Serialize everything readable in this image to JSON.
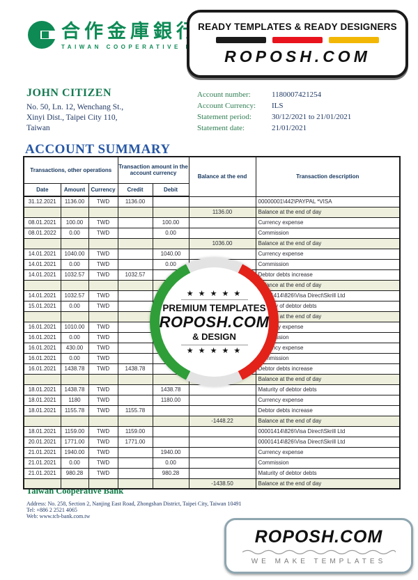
{
  "brand": {
    "logo_cn": "合作金庫銀行",
    "logo_en": "TAIWAN COOPERATIVE BANK",
    "green": "#0e8a55"
  },
  "top_badge": {
    "line1": "READY TEMPLATES & READY DESIGNERS",
    "site": "ROPOSH.COM",
    "bar_colors": [
      "#1b1b1b",
      "#e8131d",
      "#f2b705"
    ]
  },
  "customer": {
    "name": "JOHN CITIZEN",
    "address_lines": [
      "No. 50, Ln. 12, Wenchang St.,",
      "Xinyi Dist., Taipei City 110,",
      "Taiwan"
    ]
  },
  "account_info": {
    "rows": [
      {
        "label": "Account number:",
        "value": "1180007421254"
      },
      {
        "label": "Account Currency:",
        "value": "ILS"
      },
      {
        "label": "Statement period:",
        "value": "30/12/2021 to 21/01/2021"
      },
      {
        "label": "Statement date:",
        "value": "21/01/2021"
      }
    ]
  },
  "summary": {
    "title": "ACCOUNT SUMMARY",
    "header": {
      "group_transactions": "Transactions, other operations",
      "group_amount": "Transaction amount in the account currency",
      "balance": "Balance at the end",
      "description": "Transaction description",
      "cols": [
        "Date",
        "Amount",
        "Currency",
        "Credit",
        "Debit"
      ]
    },
    "rows": [
      {
        "date": "31.12.2021",
        "amount": "1136.00",
        "currency": "TWD",
        "credit": "1136.00",
        "debit": "",
        "balance": "",
        "description": "00000001\\442\\PAYPAL *VISA",
        "shaded": false
      },
      {
        "date": "",
        "amount": "",
        "currency": "",
        "credit": "",
        "debit": "",
        "balance": "1136.00",
        "description": "Balance at the end of day",
        "shaded": true
      },
      {
        "date": "08.01.2021",
        "amount": "100.00",
        "currency": "TWD",
        "credit": "",
        "debit": "100.00",
        "balance": "",
        "description": "Currency expense",
        "shaded": false
      },
      {
        "date": "08.01.2022",
        "amount": "0.00",
        "currency": "TWD",
        "credit": "",
        "debit": "0.00",
        "balance": "",
        "description": "Commission",
        "shaded": false
      },
      {
        "date": "",
        "amount": "",
        "currency": "",
        "credit": "",
        "debit": "",
        "balance": "1036.00",
        "description": "Balance at the end of day",
        "shaded": true
      },
      {
        "date": "14.01.2021",
        "amount": "1040.00",
        "currency": "TWD",
        "credit": "",
        "debit": "1040.00",
        "balance": "",
        "description": "Currency expense",
        "shaded": false
      },
      {
        "date": "14.01.2021",
        "amount": "0.00",
        "currency": "TWD",
        "credit": "",
        "debit": "0.00",
        "balance": "",
        "description": "Commission",
        "shaded": false
      },
      {
        "date": "14.01.2021",
        "amount": "1032.57",
        "currency": "TWD",
        "credit": "1032.57",
        "debit": "",
        "balance": "",
        "description": "Debtor debts increase",
        "shaded": false
      },
      {
        "date": "",
        "amount": "",
        "currency": "",
        "credit": "",
        "debit": "",
        "balance": "",
        "description": "Balance at the end of day",
        "shaded": true
      },
      {
        "date": "14.01.2021",
        "amount": "1032.57",
        "currency": "TWD",
        "credit": "",
        "debit": "1032.57",
        "balance": "",
        "description": "00001414\\826\\Visa Direct\\Skrill Ltd",
        "shaded": false
      },
      {
        "date": "15.01.2021",
        "amount": "0.00",
        "currency": "TWD",
        "credit": "",
        "debit": "",
        "balance": "",
        "description": "Maturity of debtor debts",
        "shaded": false
      },
      {
        "date": "",
        "amount": "",
        "currency": "",
        "credit": "",
        "debit": "",
        "balance": "",
        "description": "Balance at the end of day",
        "shaded": true
      },
      {
        "date": "16.01.2021",
        "amount": "1010.00",
        "currency": "TWD",
        "credit": "",
        "debit": "",
        "balance": "",
        "description": "Currency expense",
        "shaded": false
      },
      {
        "date": "16.01.2021",
        "amount": "0.00",
        "currency": "TWD",
        "credit": "",
        "debit": "",
        "balance": "",
        "description": "Commission",
        "shaded": false
      },
      {
        "date": "16.01.2021",
        "amount": "430.00",
        "currency": "TWD",
        "credit": "",
        "debit": "",
        "balance": "",
        "description": "Currency expense",
        "shaded": false
      },
      {
        "date": "16.01.2021",
        "amount": "0.00",
        "currency": "TWD",
        "credit": "",
        "debit": "",
        "balance": "",
        "description": "Commission",
        "shaded": false
      },
      {
        "date": "16.01.2021",
        "amount": "1438.78",
        "currency": "TWD",
        "credit": "1438.78",
        "debit": "",
        "balance": "",
        "description": "Debtor debts increase",
        "shaded": false
      },
      {
        "date": "",
        "amount": "",
        "currency": "",
        "credit": "",
        "debit": "",
        "balance": "",
        "description": "Balance at the end of day",
        "shaded": true
      },
      {
        "date": "18.01.2021",
        "amount": "1438.78",
        "currency": "TWD",
        "credit": "",
        "debit": "1438.78",
        "balance": "",
        "description": "Maturity of debtor debts",
        "shaded": false
      },
      {
        "date": "18.01.2021",
        "amount": "1180",
        "currency": "TWD",
        "credit": "",
        "debit": "1180.00",
        "balance": "",
        "description": "Currency expense",
        "shaded": false
      },
      {
        "date": "18.01.2021",
        "amount": "1155.78",
        "currency": "TWD",
        "credit": "1155.78",
        "debit": "",
        "balance": "",
        "description": "Debtor debts increase",
        "shaded": false
      },
      {
        "date": "",
        "amount": "",
        "currency": "",
        "credit": "",
        "debit": "",
        "balance": "-1448.22",
        "description": "Balance at the end of day",
        "shaded": true
      },
      {
        "date": "18.01.2021",
        "amount": "1159.00",
        "currency": "TWD",
        "credit": "1159.00",
        "debit": "",
        "balance": "",
        "description": "00001414\\826\\Visa Direct\\Skrill Ltd",
        "shaded": false
      },
      {
        "date": "20.01.2021",
        "amount": "1771.00",
        "currency": "TWD",
        "credit": "1771.00",
        "debit": "",
        "balance": "",
        "description": "00001414\\826\\Visa Direct\\Skrill Ltd",
        "shaded": false
      },
      {
        "date": "21.01.2021",
        "amount": "1940.00",
        "currency": "TWD",
        "credit": "",
        "debit": "1940.00",
        "balance": "",
        "description": "Currency expense",
        "shaded": false
      },
      {
        "date": "21.01.2021",
        "amount": "0.00",
        "currency": "TWD",
        "credit": "",
        "debit": "0.00",
        "balance": "",
        "description": "Commission",
        "shaded": false
      },
      {
        "date": "21.01.2021",
        "amount": "980.28",
        "currency": "TWD",
        "credit": "",
        "debit": "980.28",
        "balance": "",
        "description": "Maturity of debtor debts",
        "shaded": false
      },
      {
        "date": "",
        "amount": "",
        "currency": "",
        "credit": "",
        "debit": "",
        "balance": "-1438.50",
        "description": "Balance at the end of day",
        "shaded": true
      }
    ]
  },
  "watermark": {
    "stars": "★ ★ ★ ★ ★",
    "line1": "PREMIUM TEMPLATES",
    "site": "ROPOSH.COM",
    "line2": "& DESIGN",
    "green": "#2f9e38",
    "red": "#e32219"
  },
  "footer": {
    "bank_name": "Taiwan Cooperative Bank",
    "lines": [
      "Address: No. 258, Section 2, Nanjing East Road, Zhongshan District, Taipei City, Taiwan 10491",
      "Tel: +886 2 2521 4065",
      "Web: www.tcb-bank.com.tw"
    ]
  },
  "bottom_badge": {
    "site": "ROPOSH.COM",
    "tagline": "WE MAKE TEMPLATES"
  }
}
